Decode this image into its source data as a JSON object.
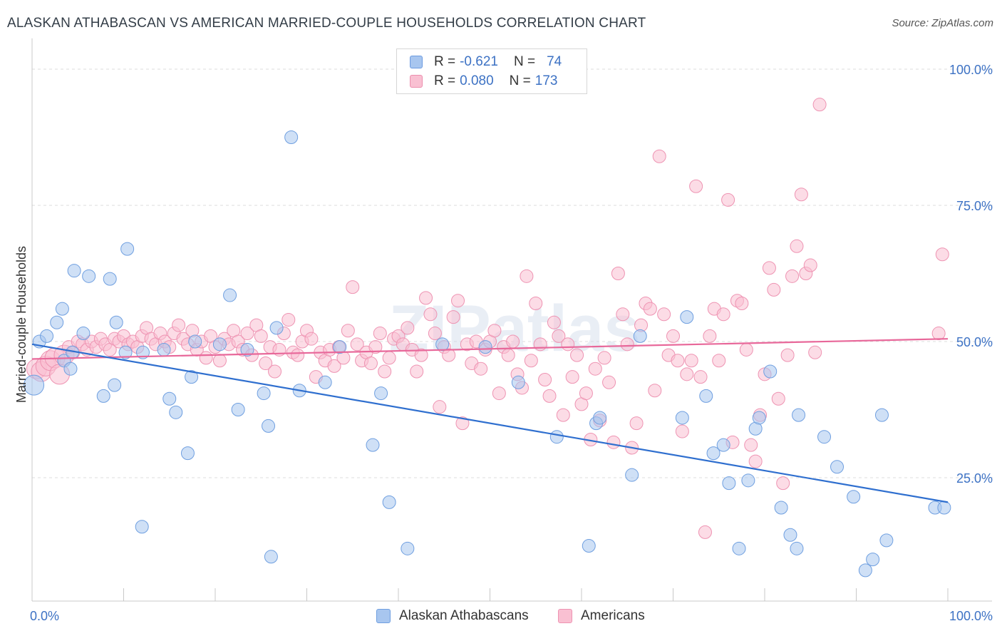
{
  "header": {
    "title": "ALASKAN ATHABASCAN VS AMERICAN MARRIED-COUPLE HOUSEHOLDS CORRELATION CHART",
    "source": "Source: ZipAtlas.com"
  },
  "legend": {
    "r_label": "R =",
    "n_label": "N =",
    "rows": [
      {
        "r": "-0.621",
        "n": "74",
        "color": "#a8c6ef",
        "border": "#6c9be0"
      },
      {
        "r": "0.080",
        "n": "173",
        "color": "#f9c0d2",
        "border": "#ec8fae"
      }
    ]
  },
  "bottom_legend": {
    "athabascan": "Alaskan Athabascans",
    "americans": "Americans"
  },
  "watermark": "ZIPatlas",
  "colors": {
    "blue_fill": "#a8c6ef",
    "blue_stroke": "#6f9fe0",
    "blue_line": "#2f6fcf",
    "pink_fill": "#f9c0d2",
    "pink_stroke": "#ee93b2",
    "pink_line": "#e8689a",
    "tick_label": "#3d72c4"
  },
  "chart_data": {
    "type": "scatter",
    "title": "ALASKAN ATHABASCAN VS AMERICAN MARRIED-COUPLE HOUSEHOLDS CORRELATION CHART",
    "xlabel": "",
    "ylabel": "Married-couple Households",
    "xlim": [
      0,
      100
    ],
    "ylim": [
      0,
      105
    ],
    "x_tick_labels": [
      "0.0%",
      "100.0%"
    ],
    "y_ticks": [
      25,
      50,
      75,
      100
    ],
    "y_tick_labels": [
      "25.0%",
      "50.0%",
      "75.0%",
      "100.0%"
    ],
    "grid": true,
    "legend_position": "top-center",
    "series": [
      {
        "name": "Alaskan Athabascans",
        "r": -0.621,
        "n": 74,
        "trend": {
          "x": [
            0,
            100
          ],
          "y": [
            49.5,
            20.5
          ]
        },
        "points": [
          [
            0.2,
            42.0
          ],
          [
            0.8,
            50.0
          ],
          [
            1.6,
            51.0
          ],
          [
            2.7,
            53.5
          ],
          [
            3.3,
            56.0
          ],
          [
            3.5,
            46.5
          ],
          [
            4.2,
            45.0
          ],
          [
            4.4,
            48.0
          ],
          [
            4.6,
            63.0
          ],
          [
            5.6,
            51.5
          ],
          [
            6.2,
            62.0
          ],
          [
            7.8,
            40.0
          ],
          [
            8.5,
            61.5
          ],
          [
            9.0,
            42.0
          ],
          [
            9.2,
            53.5
          ],
          [
            10.2,
            48.0
          ],
          [
            10.4,
            67.0
          ],
          [
            12.0,
            16.0
          ],
          [
            12.1,
            48.0
          ],
          [
            14.4,
            48.5
          ],
          [
            15.0,
            39.5
          ],
          [
            15.7,
            37.0
          ],
          [
            17.0,
            29.5
          ],
          [
            17.4,
            43.5
          ],
          [
            17.8,
            50.0
          ],
          [
            20.5,
            49.5
          ],
          [
            21.6,
            58.5
          ],
          [
            22.5,
            37.5
          ],
          [
            23.5,
            48.5
          ],
          [
            25.3,
            40.5
          ],
          [
            25.8,
            34.5
          ],
          [
            26.1,
            10.5
          ],
          [
            26.7,
            52.5
          ],
          [
            28.3,
            87.5
          ],
          [
            29.2,
            41.0
          ],
          [
            32.0,
            42.5
          ],
          [
            33.6,
            49.0
          ],
          [
            37.2,
            31.0
          ],
          [
            38.1,
            40.5
          ],
          [
            39.0,
            20.5
          ],
          [
            41.0,
            12.0
          ],
          [
            44.8,
            49.5
          ],
          [
            49.5,
            49.0
          ],
          [
            53.1,
            42.5
          ],
          [
            57.3,
            32.5
          ],
          [
            60.8,
            12.5
          ],
          [
            61.6,
            35.0
          ],
          [
            62.0,
            36.0
          ],
          [
            65.5,
            25.5
          ],
          [
            66.4,
            51.0
          ],
          [
            71.0,
            36.0
          ],
          [
            71.5,
            54.5
          ],
          [
            73.6,
            40.0
          ],
          [
            74.4,
            29.5
          ],
          [
            75.5,
            31.0
          ],
          [
            76.1,
            24.0
          ],
          [
            77.2,
            12.0
          ],
          [
            78.2,
            24.5
          ],
          [
            79.0,
            34.0
          ],
          [
            79.4,
            36.0
          ],
          [
            80.6,
            44.5
          ],
          [
            81.8,
            19.5
          ],
          [
            82.8,
            14.5
          ],
          [
            83.5,
            12.0
          ],
          [
            83.7,
            36.5
          ],
          [
            86.5,
            32.5
          ],
          [
            87.9,
            27.0
          ],
          [
            89.7,
            21.5
          ],
          [
            91.0,
            8.0
          ],
          [
            91.8,
            10.0
          ],
          [
            92.8,
            36.5
          ],
          [
            93.3,
            13.5
          ],
          [
            98.6,
            19.5
          ],
          [
            99.6,
            19.5
          ]
        ]
      },
      {
        "name": "Americans",
        "r": 0.08,
        "n": 173,
        "trend": {
          "x": [
            0,
            100
          ],
          "y": [
            46.8,
            50.5
          ]
        },
        "points": [
          [
            0.5,
            45.0
          ],
          [
            1.0,
            44.5
          ],
          [
            1.5,
            45.5
          ],
          [
            2.0,
            46.5
          ],
          [
            2.5,
            47.0
          ],
          [
            3.0,
            44.0
          ],
          [
            3.5,
            47.5
          ],
          [
            4.0,
            49.0
          ],
          [
            4.5,
            48.0
          ],
          [
            5.0,
            50.0
          ],
          [
            5.5,
            49.5
          ],
          [
            6.0,
            48.5
          ],
          [
            6.5,
            50.0
          ],
          [
            7.0,
            49.0
          ],
          [
            7.5,
            50.5
          ],
          [
            8.0,
            49.5
          ],
          [
            8.5,
            48.5
          ],
          [
            9.0,
            50.5
          ],
          [
            9.5,
            50.0
          ],
          [
            10.0,
            51.0
          ],
          [
            10.5,
            49.5
          ],
          [
            11.0,
            50.0
          ],
          [
            11.5,
            49.0
          ],
          [
            12.0,
            51.0
          ],
          [
            12.5,
            52.5
          ],
          [
            13.0,
            50.5
          ],
          [
            13.5,
            49.5
          ],
          [
            14.0,
            51.5
          ],
          [
            14.5,
            50.0
          ],
          [
            15.0,
            49.0
          ],
          [
            15.5,
            51.5
          ],
          [
            16.0,
            53.0
          ],
          [
            16.5,
            50.5
          ],
          [
            17.0,
            49.5
          ],
          [
            17.5,
            52.0
          ],
          [
            18.0,
            48.5
          ],
          [
            18.5,
            50.0
          ],
          [
            19.0,
            47.0
          ],
          [
            19.5,
            51.0
          ],
          [
            20.0,
            49.0
          ],
          [
            20.5,
            46.5
          ],
          [
            21.0,
            50.5
          ],
          [
            21.5,
            49.5
          ],
          [
            22.0,
            52.0
          ],
          [
            22.5,
            50.0
          ],
          [
            23.0,
            48.5
          ],
          [
            23.5,
            51.5
          ],
          [
            24.0,
            47.5
          ],
          [
            24.5,
            53.0
          ],
          [
            25.0,
            51.0
          ],
          [
            25.5,
            46.0
          ],
          [
            26.0,
            49.0
          ],
          [
            26.5,
            44.5
          ],
          [
            27.0,
            48.5
          ],
          [
            27.5,
            51.5
          ],
          [
            28.0,
            54.0
          ],
          [
            28.5,
            48.0
          ],
          [
            29.0,
            47.5
          ],
          [
            29.5,
            50.0
          ],
          [
            30.0,
            52.0
          ],
          [
            30.5,
            50.5
          ],
          [
            31.0,
            43.5
          ],
          [
            31.5,
            48.0
          ],
          [
            32.0,
            46.5
          ],
          [
            32.5,
            48.5
          ],
          [
            33.0,
            45.5
          ],
          [
            33.5,
            49.0
          ],
          [
            34.0,
            47.0
          ],
          [
            34.5,
            52.0
          ],
          [
            35.0,
            60.0
          ],
          [
            35.5,
            49.5
          ],
          [
            36.0,
            46.5
          ],
          [
            36.5,
            48.0
          ],
          [
            37.0,
            46.0
          ],
          [
            37.5,
            49.0
          ],
          [
            38.0,
            51.5
          ],
          [
            38.5,
            44.5
          ],
          [
            39.0,
            47.0
          ],
          [
            39.5,
            50.5
          ],
          [
            40.0,
            51.0
          ],
          [
            40.5,
            49.5
          ],
          [
            41.0,
            52.5
          ],
          [
            41.5,
            48.5
          ],
          [
            42.0,
            44.5
          ],
          [
            42.5,
            47.5
          ],
          [
            43.0,
            58.0
          ],
          [
            43.5,
            55.0
          ],
          [
            44.0,
            51.5
          ],
          [
            44.5,
            38.0
          ],
          [
            45.0,
            49.0
          ],
          [
            45.5,
            47.5
          ],
          [
            46.0,
            54.5
          ],
          [
            46.5,
            57.5
          ],
          [
            47.0,
            35.0
          ],
          [
            47.5,
            49.5
          ],
          [
            48.0,
            46.0
          ],
          [
            48.5,
            50.0
          ],
          [
            49.0,
            45.0
          ],
          [
            49.5,
            48.5
          ],
          [
            50.0,
            50.0
          ],
          [
            50.5,
            52.0
          ],
          [
            51.0,
            40.5
          ],
          [
            51.5,
            49.0
          ],
          [
            52.0,
            47.5
          ],
          [
            52.5,
            50.0
          ],
          [
            53.0,
            44.0
          ],
          [
            53.5,
            41.5
          ],
          [
            54.0,
            62.0
          ],
          [
            54.5,
            46.5
          ],
          [
            55.0,
            57.0
          ],
          [
            55.5,
            49.5
          ],
          [
            56.0,
            43.0
          ],
          [
            56.5,
            40.0
          ],
          [
            57.0,
            53.5
          ],
          [
            57.5,
            51.0
          ],
          [
            58.0,
            36.5
          ],
          [
            58.5,
            49.5
          ],
          [
            59.0,
            43.5
          ],
          [
            59.5,
            47.5
          ],
          [
            60.0,
            38.5
          ],
          [
            60.5,
            40.5
          ],
          [
            61.0,
            32.0
          ],
          [
            61.5,
            45.0
          ],
          [
            62.0,
            35.5
          ],
          [
            62.5,
            47.0
          ],
          [
            63.0,
            42.5
          ],
          [
            63.5,
            31.5
          ],
          [
            64.0,
            62.5
          ],
          [
            64.5,
            55.0
          ],
          [
            65.0,
            49.5
          ],
          [
            65.5,
            30.5
          ],
          [
            66.0,
            35.0
          ],
          [
            66.5,
            53.0
          ],
          [
            67.0,
            57.0
          ],
          [
            67.5,
            56.0
          ],
          [
            68.0,
            41.0
          ],
          [
            68.5,
            84.0
          ],
          [
            69.0,
            55.0
          ],
          [
            69.5,
            47.5
          ],
          [
            70.0,
            51.0
          ],
          [
            70.5,
            46.5
          ],
          [
            71.0,
            33.5
          ],
          [
            71.5,
            44.0
          ],
          [
            72.0,
            46.5
          ],
          [
            72.5,
            78.5
          ],
          [
            73.0,
            43.5
          ],
          [
            73.5,
            15.0
          ],
          [
            74.0,
            51.0
          ],
          [
            74.5,
            56.0
          ],
          [
            75.0,
            46.5
          ],
          [
            75.5,
            55.0
          ],
          [
            76.0,
            76.0
          ],
          [
            76.5,
            31.5
          ],
          [
            77.0,
            57.5
          ],
          [
            77.5,
            57.0
          ],
          [
            78.0,
            48.5
          ],
          [
            78.5,
            31.0
          ],
          [
            79.0,
            28.0
          ],
          [
            79.5,
            36.5
          ],
          [
            80.0,
            44.0
          ],
          [
            80.5,
            63.5
          ],
          [
            81.0,
            59.5
          ],
          [
            81.5,
            39.5
          ],
          [
            82.0,
            24.0
          ],
          [
            82.5,
            47.5
          ],
          [
            83.0,
            62.0
          ],
          [
            83.5,
            67.5
          ],
          [
            84.0,
            77.0
          ],
          [
            84.5,
            62.5
          ],
          [
            85.0,
            64.0
          ],
          [
            85.5,
            48.0
          ],
          [
            86.0,
            93.5
          ],
          [
            99.0,
            51.5
          ],
          [
            99.4,
            66.0
          ]
        ]
      }
    ]
  }
}
